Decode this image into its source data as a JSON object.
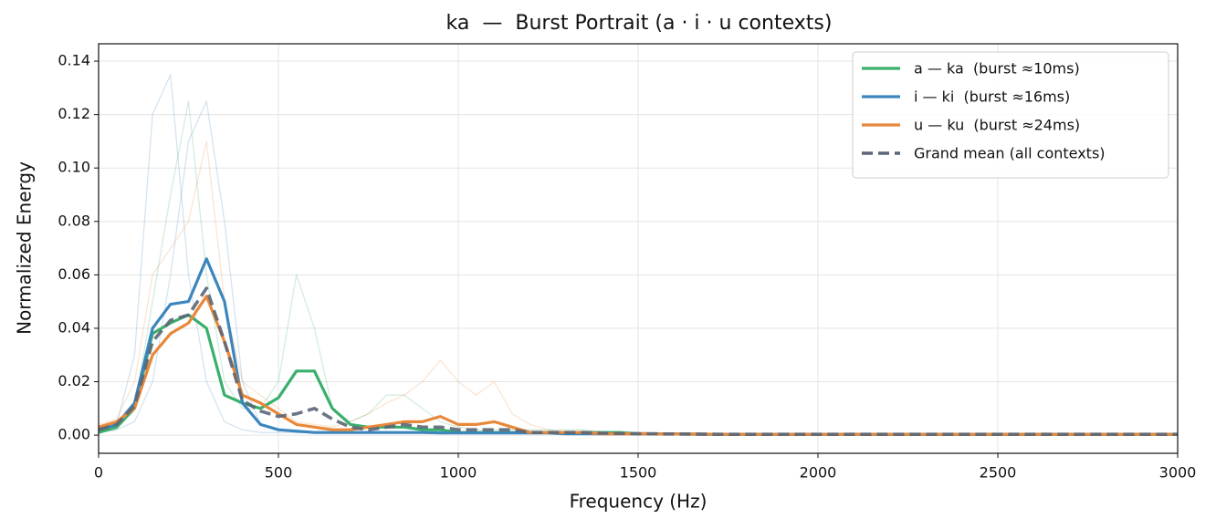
{
  "chart_data": {
    "type": "line",
    "title": "ka  —  Burst Portrait (a · i · u contexts)",
    "x_label": "Frequency (Hz)",
    "y_label": "Normalized Energy",
    "x": [
      0,
      50,
      100,
      150,
      200,
      250,
      300,
      350,
      400,
      450,
      500,
      550,
      600,
      650,
      700,
      750,
      800,
      850,
      900,
      950,
      1000,
      1050,
      1100,
      1150,
      1200,
      1250,
      1300,
      1350,
      1400,
      1450,
      1500,
      1750,
      2000,
      2250,
      2500,
      2750,
      3000
    ],
    "xlim": [
      0,
      3000
    ],
    "xticks": [
      0,
      500,
      1000,
      1500,
      2000,
      2500,
      3000
    ],
    "ylim": [
      -0.0068,
      0.1465
    ],
    "yticks": [
      {
        "value": 0,
        "label": "0.00"
      },
      0.02,
      0.04,
      0.06,
      0.08,
      {
        "value": 0.1,
        "label": "0.10"
      },
      0.12,
      0.14
    ],
    "grid": true,
    "legend": "upper-right",
    "series": [
      {
        "color": "#3a86bd",
        "linestyle": "faint",
        "values": [
          0.002,
          0.004,
          0.03,
          0.12,
          0.135,
          0.06,
          0.02,
          0.005,
          0.002,
          0.001,
          0.001,
          0.001,
          0.001,
          0.001,
          0.001,
          0.001,
          0.001,
          0.001,
          0.001,
          0.001,
          0.001,
          0.001,
          0.001,
          0.001,
          0.001,
          0.001,
          0.001,
          0.001,
          0.001,
          0.001,
          0.001,
          0.0003,
          0.0003,
          0.0003,
          0.0003,
          0.0003,
          0.0003
        ]
      },
      {
        "color": "#3a86bd",
        "linestyle": "faint",
        "values": [
          0.001,
          0.002,
          0.005,
          0.02,
          0.06,
          0.11,
          0.125,
          0.08,
          0.02,
          0.004,
          0.002,
          0.001,
          0.001,
          0.001,
          0.001,
          0.001,
          0.001,
          0.001,
          0.001,
          0.001,
          0.001,
          0.001,
          0.001,
          0.001,
          0.001,
          0.001,
          0.001,
          0.001,
          0.001,
          0.001,
          0.001,
          0.0003,
          0.0003,
          0.0003,
          0.0003,
          0.0003,
          0.0003
        ]
      },
      {
        "color": "#e8883a",
        "linestyle": "faint",
        "values": [
          0.004,
          0.006,
          0.02,
          0.06,
          0.07,
          0.08,
          0.11,
          0.05,
          0.02,
          0.015,
          0.01,
          0.005,
          0.004,
          0.003,
          0.005,
          0.008,
          0.012,
          0.015,
          0.02,
          0.028,
          0.02,
          0.015,
          0.02,
          0.008,
          0.004,
          0.002,
          0.001,
          0.001,
          0.001,
          0.001,
          0.001,
          0.0003,
          0.0003,
          0.0003,
          0.0003,
          0.0003,
          0.0003
        ]
      },
      {
        "color": "#3aaf6b",
        "linestyle": "faint",
        "values": [
          0.001,
          0.002,
          0.01,
          0.05,
          0.09,
          0.125,
          0.06,
          0.02,
          0.01,
          0.01,
          0.02,
          0.06,
          0.04,
          0.01,
          0.005,
          0.008,
          0.015,
          0.015,
          0.01,
          0.005,
          0.003,
          0.002,
          0.002,
          0.002,
          0.002,
          0.002,
          0.002,
          0.002,
          0.001,
          0.001,
          0.001,
          0.0003,
          0.0003,
          0.0003,
          0.0003,
          0.0003,
          0.0003
        ]
      },
      {
        "name": "a — ka  (burst ≈10ms)",
        "color": "#3aaf6b",
        "linestyle": "solid",
        "values": [
          0.001,
          0.003,
          0.01,
          0.038,
          0.042,
          0.045,
          0.04,
          0.015,
          0.012,
          0.01,
          0.014,
          0.024,
          0.024,
          0.01,
          0.004,
          0.003,
          0.003,
          0.003,
          0.002,
          0.002,
          0.001,
          0.001,
          0.001,
          0.001,
          0.001,
          0.001,
          0.001,
          0.001,
          0.001,
          0.001,
          0.0005,
          0.0003,
          0.0003,
          0.0003,
          0.0003,
          0.0003,
          0.0003
        ]
      },
      {
        "name": "i — ki  (burst ≈16ms)",
        "color": "#3a86bd",
        "linestyle": "solid",
        "values": [
          0.002,
          0.004,
          0.012,
          0.04,
          0.049,
          0.05,
          0.066,
          0.05,
          0.012,
          0.004,
          0.002,
          0.0015,
          0.001,
          0.001,
          0.001,
          0.001,
          0.001,
          0.001,
          0.001,
          0.0008,
          0.0008,
          0.0008,
          0.0008,
          0.0008,
          0.0008,
          0.0008,
          0.0005,
          0.0005,
          0.0005,
          0.0005,
          0.0005,
          0.0003,
          0.0003,
          0.0003,
          0.0003,
          0.0003,
          0.0003
        ]
      },
      {
        "name": "u — ku  (burst ≈24ms)",
        "color": "#e8883a",
        "linestyle": "solid",
        "values": [
          0.003,
          0.005,
          0.01,
          0.03,
          0.038,
          0.042,
          0.052,
          0.035,
          0.015,
          0.012,
          0.008,
          0.004,
          0.003,
          0.002,
          0.002,
          0.003,
          0.004,
          0.005,
          0.005,
          0.007,
          0.004,
          0.004,
          0.005,
          0.003,
          0.001,
          0.001,
          0.001,
          0.001,
          0.0005,
          0.0005,
          0.0005,
          0.0003,
          0.0003,
          0.0003,
          0.0003,
          0.0003,
          0.0003
        ]
      },
      {
        "name": "Grand mean (all contexts)",
        "color": "#5b6676",
        "linestyle": "dashed",
        "values": [
          0.002,
          0.004,
          0.011,
          0.035,
          0.043,
          0.045,
          0.055,
          0.035,
          0.013,
          0.009,
          0.007,
          0.008,
          0.01,
          0.006,
          0.003,
          0.002,
          0.003,
          0.004,
          0.003,
          0.003,
          0.002,
          0.002,
          0.002,
          0.002,
          0.001,
          0.001,
          0.001,
          0.001,
          0.0007,
          0.0006,
          0.0005,
          0.0003,
          0.0003,
          0.0003,
          0.0003,
          0.0003,
          0.0003
        ]
      }
    ]
  }
}
